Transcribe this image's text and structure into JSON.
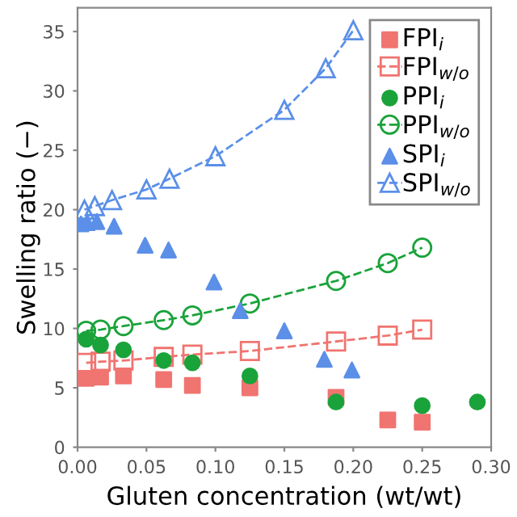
{
  "chart_data": {
    "type": "scatter",
    "xlabel": "Gluten concentration (wt/wt)",
    "ylabel": "Swelling ratio (−)",
    "xlim": [
      0,
      0.3
    ],
    "xticks": [
      {
        "value": 0,
        "label": "0.00"
      },
      {
        "value": 0.05,
        "label": "0.05"
      },
      {
        "value": 0.1,
        "label": "0.10"
      },
      {
        "value": 0.15,
        "label": "0.15"
      },
      {
        "value": 0.2,
        "label": "0.20"
      },
      {
        "value": 0.25,
        "label": "0.25"
      },
      {
        "value": 0.3,
        "label": "0.30"
      }
    ],
    "ylim": [
      0,
      37
    ],
    "yticks": [
      0,
      5,
      10,
      15,
      20,
      25,
      30,
      35
    ],
    "grid": false,
    "legend": "top right",
    "series": [
      {
        "name": "FPI$_{i}$",
        "marker": "square",
        "color": "#f07470",
        "x": [
          0.00625,
          0.0167,
          0.0333,
          0.0625,
          0.0833,
          0.125,
          0.1875,
          0.225,
          0.25
        ],
        "values": [
          5.8,
          5.9,
          6.0,
          5.7,
          5.2,
          5.0,
          4.2,
          2.3,
          2.1
        ]
      },
      {
        "name": "FPI$_{w/o}$",
        "type": "line",
        "marker": "square",
        "line_style": "dashed",
        "color": "#f07470",
        "x": [
          0.00625,
          0.0167,
          0.0333,
          0.0625,
          0.0833,
          0.125,
          0.1875,
          0.225,
          0.25
        ],
        "values": [
          7.1,
          7.2,
          7.3,
          7.6,
          7.8,
          8.1,
          8.9,
          9.4,
          9.9
        ]
      },
      {
        "name": "PPI$_{i}$",
        "marker": "circle",
        "color": "#1aa33a",
        "x": [
          0.00625,
          0.0167,
          0.0333,
          0.0625,
          0.0833,
          0.125,
          0.1875,
          0.25,
          0.29
        ],
        "values": [
          9.1,
          8.6,
          8.2,
          7.3,
          7.1,
          6.0,
          3.8,
          3.5,
          3.8
        ]
      },
      {
        "name": "PPI$_{w/o}$",
        "type": "line",
        "marker": "circle",
        "line_style": "dashed",
        "color": "#1aa33a",
        "x": [
          0.00625,
          0.0167,
          0.0333,
          0.0625,
          0.0833,
          0.125,
          0.1875,
          0.225,
          0.25
        ],
        "values": [
          9.8,
          9.9,
          10.2,
          10.7,
          11.1,
          12.1,
          14.0,
          15.5,
          16.8
        ]
      },
      {
        "name": "SPI$_{i}$",
        "marker": "triangle",
        "color": "#5b8fe8",
        "x": [
          0.0025,
          0.007,
          0.014,
          0.0265,
          0.049,
          0.066,
          0.099,
          0.118,
          0.15,
          0.179,
          0.199
        ],
        "values": [
          18.8,
          18.9,
          19.0,
          18.6,
          17.0,
          16.6,
          13.9,
          11.5,
          9.8,
          7.4,
          6.5
        ]
      },
      {
        "name": "SPI$_{w/o}$",
        "type": "line",
        "marker": "triangle",
        "line_style": "dashed",
        "color": "#5b8fe8",
        "x": [
          0.005,
          0.0125,
          0.025,
          0.05,
          0.0667,
          0.1,
          0.15,
          0.18,
          0.2
        ],
        "values": [
          20.0,
          20.3,
          20.8,
          21.7,
          22.6,
          24.5,
          28.4,
          31.9,
          35.1
        ]
      }
    ]
  }
}
